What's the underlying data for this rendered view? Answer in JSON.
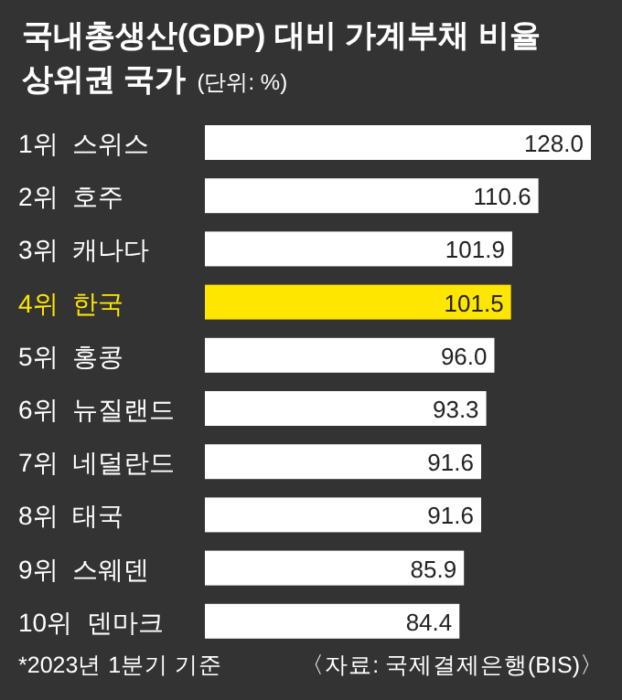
{
  "chart_data": {
    "type": "bar",
    "orientation": "horizontal",
    "title": "국내총생산(GDP) 대비 가계부채 비율\n상위권 국가",
    "subtitle": "(단위: %)",
    "categories": [
      "1위  스위스",
      "2위  호주",
      "3위  캐나다",
      "4위  한국",
      "5위  홍콩",
      "6위  뉴질랜드",
      "7위  네덜란드",
      "8위  태국",
      "9위  스웨덴",
      "10위  덴마크"
    ],
    "values": [
      128.0,
      110.6,
      101.9,
      101.5,
      96.0,
      93.3,
      91.6,
      91.6,
      85.9,
      84.4
    ],
    "colors": [
      "#ffffff",
      "#ffffff",
      "#ffffff",
      "#ffe600",
      "#ffffff",
      "#ffffff",
      "#ffffff",
      "#ffffff",
      "#ffffff",
      "#ffffff"
    ],
    "value_labels": [
      "128.0",
      "110.6",
      "101.9",
      "101.5",
      "96.0",
      "93.3",
      "91.6",
      "91.6",
      "85.9",
      "84.4"
    ],
    "annotations": [
      "*2023년 1분기 기준",
      "〈자료: 국제결제은행(BIS)〉"
    ]
  }
}
